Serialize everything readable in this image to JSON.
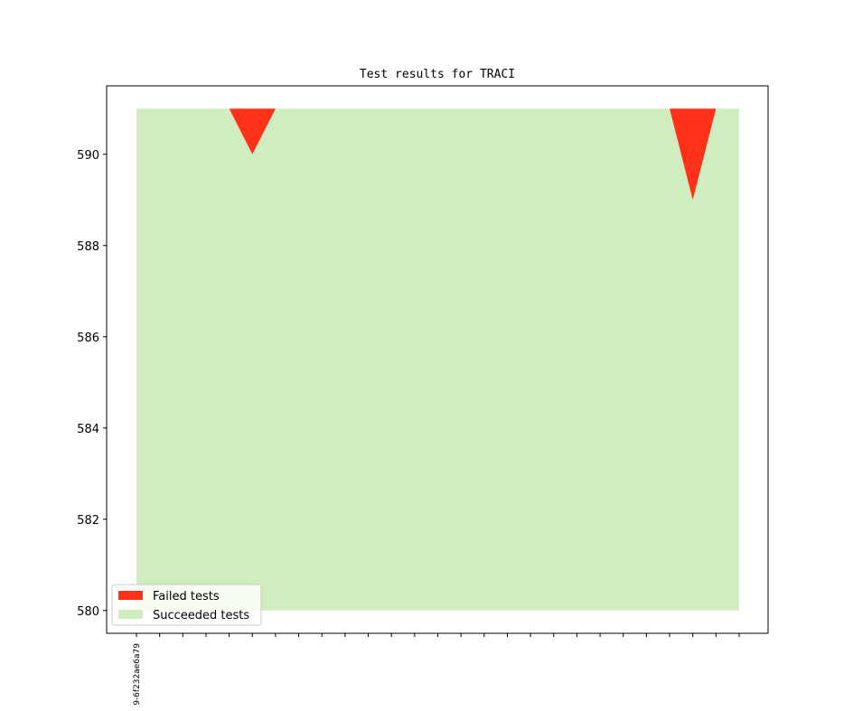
{
  "chart_data": {
    "type": "area",
    "title": "Test results for TRACI",
    "xlabel": "",
    "ylabel": "",
    "ylim": [
      579.5,
      591.5
    ],
    "yticks": [
      580,
      582,
      584,
      586,
      588,
      590
    ],
    "x_count": 27,
    "x_tick_labels": [
      "9-6f232ae6a79"
    ],
    "series": [
      {
        "name": "Failed tests",
        "color": "#ff3119",
        "values": [
          0,
          0,
          0,
          0,
          0,
          1,
          0,
          0,
          0,
          0,
          0,
          0,
          0,
          0,
          0,
          0,
          0,
          0,
          0,
          0,
          0,
          0,
          0,
          0,
          2,
          0,
          0
        ]
      },
      {
        "name": "Succeeded tests",
        "color": "#cfedbf",
        "values": [
          591,
          591,
          591,
          591,
          591,
          590,
          591,
          591,
          591,
          591,
          591,
          591,
          591,
          591,
          591,
          591,
          591,
          591,
          591,
          591,
          591,
          591,
          591,
          591,
          589,
          591,
          591
        ]
      }
    ],
    "total": 591,
    "baseline": 580,
    "legend_position": "lower-left",
    "grid": false
  }
}
